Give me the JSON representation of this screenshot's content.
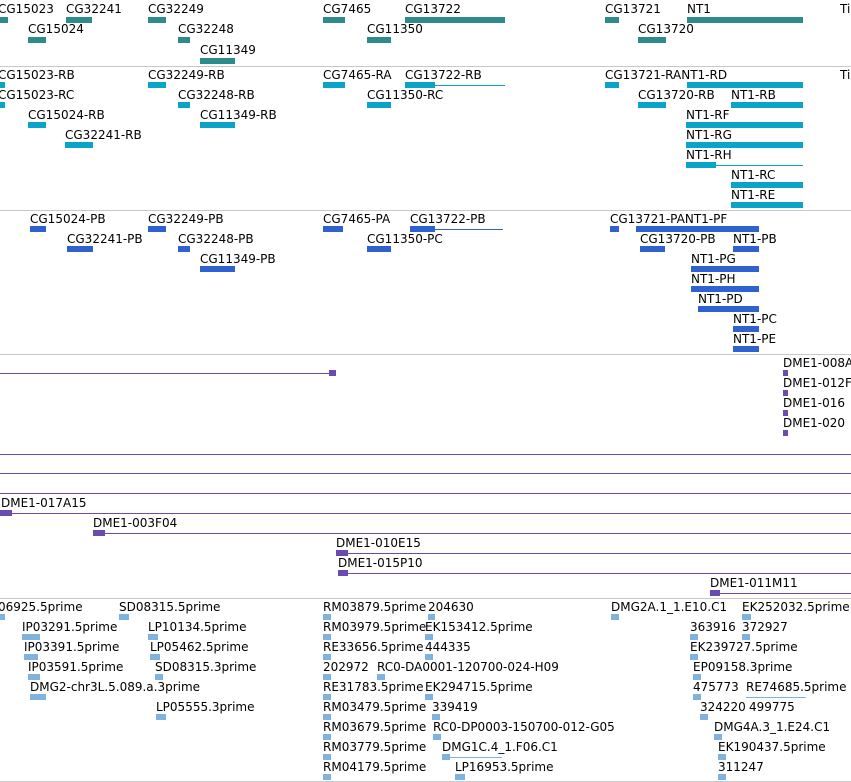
{
  "colors": {
    "gene": "#2e8b8b",
    "mrna": "#0aa4c8",
    "protein": "#2f62d0",
    "clone": "#6a4bb0",
    "est": "#7fb2dc",
    "divider": "#c8c8c8"
  },
  "genes": {
    "labels": [
      "CG15023",
      "CG32241",
      "CG32249",
      "CG7465",
      "CG13722",
      "CG13721",
      "NT1",
      "Ti",
      "CG15024",
      "CG32248",
      "CG11350",
      "CG13720",
      "CG11349"
    ]
  },
  "transcripts": {
    "labels": [
      "CG15023-RB",
      "CG32249-RB",
      "CG7465-RA",
      "CG13722-RB",
      "CG13721-RANT1-RD",
      "Ti",
      "CG15023-RC",
      "CG32248-RB",
      "CG11350-RC",
      "CG13720-RB",
      "NT1-RB",
      "CG15024-RB",
      "CG11349-RB",
      "CG32241-RB",
      "NT1-RF",
      "NT1-RG",
      "NT1-RH",
      "NT1-RC",
      "NT1-RE"
    ]
  },
  "proteins": {
    "labels": [
      "CG15024-PB",
      "CG32249-PB",
      "CG7465-PA",
      "CG13722-PB",
      "CG13721-PANT1-PF",
      "CG32241-PB",
      "CG32248-PB",
      "CG11350-PC",
      "CG13720-PB",
      "NT1-PB",
      "CG11349-PB",
      "NT1-PG",
      "NT1-PH",
      "NT1-PD",
      "NT1-PC",
      "NT1-PE"
    ]
  },
  "clones": {
    "labels": [
      "DME1-008A",
      "DME1-012F",
      "DME1-016",
      "DME1-020",
      "DME1-017A15",
      "DME1-003F04",
      "DME1-010E15",
      "DME1-015P10",
      "DME1-011M11"
    ]
  },
  "ests": {
    "labels": [
      "06925.5prime",
      "SD08315.5prime",
      "RM03879.5prime",
      "204630",
      "DMG2A.1_1.E10.C1",
      "EK252032.5prime",
      "IP03291.5prime",
      "LP10134.5prime",
      "RM03979.5prime",
      "EK153412.5prime",
      "363916",
      "372927",
      "IP03391.5prime",
      "LP05462.5prime",
      "RE33656.5prime",
      "444335",
      "EK239727.5prime",
      "IP03591.5prime",
      "SD08315.3prime",
      "202972",
      "RC0-DA0001-120700-024-H09",
      "EP09158.3prime",
      "DMG2-chr3L.5.089.a.3prime",
      "RE31783.5prime",
      "EK294715.5prime",
      "475773",
      "RE74685.5prime",
      "LP05555.3prime",
      "RM03479.5prime",
      "339419",
      "324220",
      "499775",
      "RM03679.5prime",
      "RC0-DP0003-150700-012-G05",
      "DMG4A.3_1.E24.C1",
      "RM03779.5prime",
      "DMG1C.4_1.F06.C1",
      "EK190437.5prime",
      "RM04179.5prime",
      "LP16953.5prime",
      "311247"
    ]
  }
}
